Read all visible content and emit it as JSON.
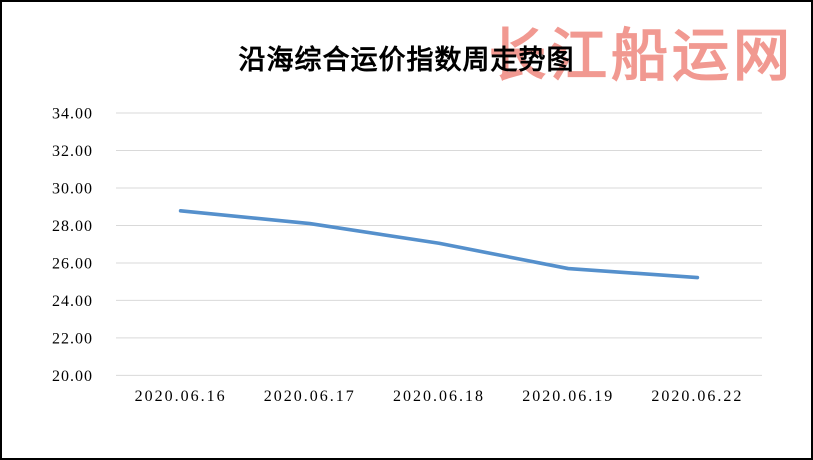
{
  "title": "沿海综合运价指数周走势图",
  "watermark": {
    "text": "长江船运网",
    "color": "#e85a4e"
  },
  "chart_data": {
    "type": "line",
    "title": "沿海综合运价指数周走势图",
    "categories": [
      "2020.06.16",
      "2020.06.17",
      "2020.06.18",
      "2020.06.19",
      "2020.06.22"
    ],
    "values": [
      28.78,
      28.1,
      27.05,
      25.7,
      25.22
    ],
    "xlabel": "",
    "ylabel": "",
    "ylim": [
      20,
      34
    ],
    "yticks": [
      34,
      32,
      30,
      28,
      26,
      24,
      22,
      20
    ],
    "ytick_labels": [
      "34.00",
      "32.00",
      "30.00",
      "28.00",
      "26.00",
      "24.00",
      "22.00",
      "20.00"
    ],
    "grid": true,
    "legend": "none",
    "markers": false,
    "line_color": "#5590cc",
    "gridline_color": "#d9d9d9",
    "background": "#ffffff",
    "border_color": "#000000"
  }
}
